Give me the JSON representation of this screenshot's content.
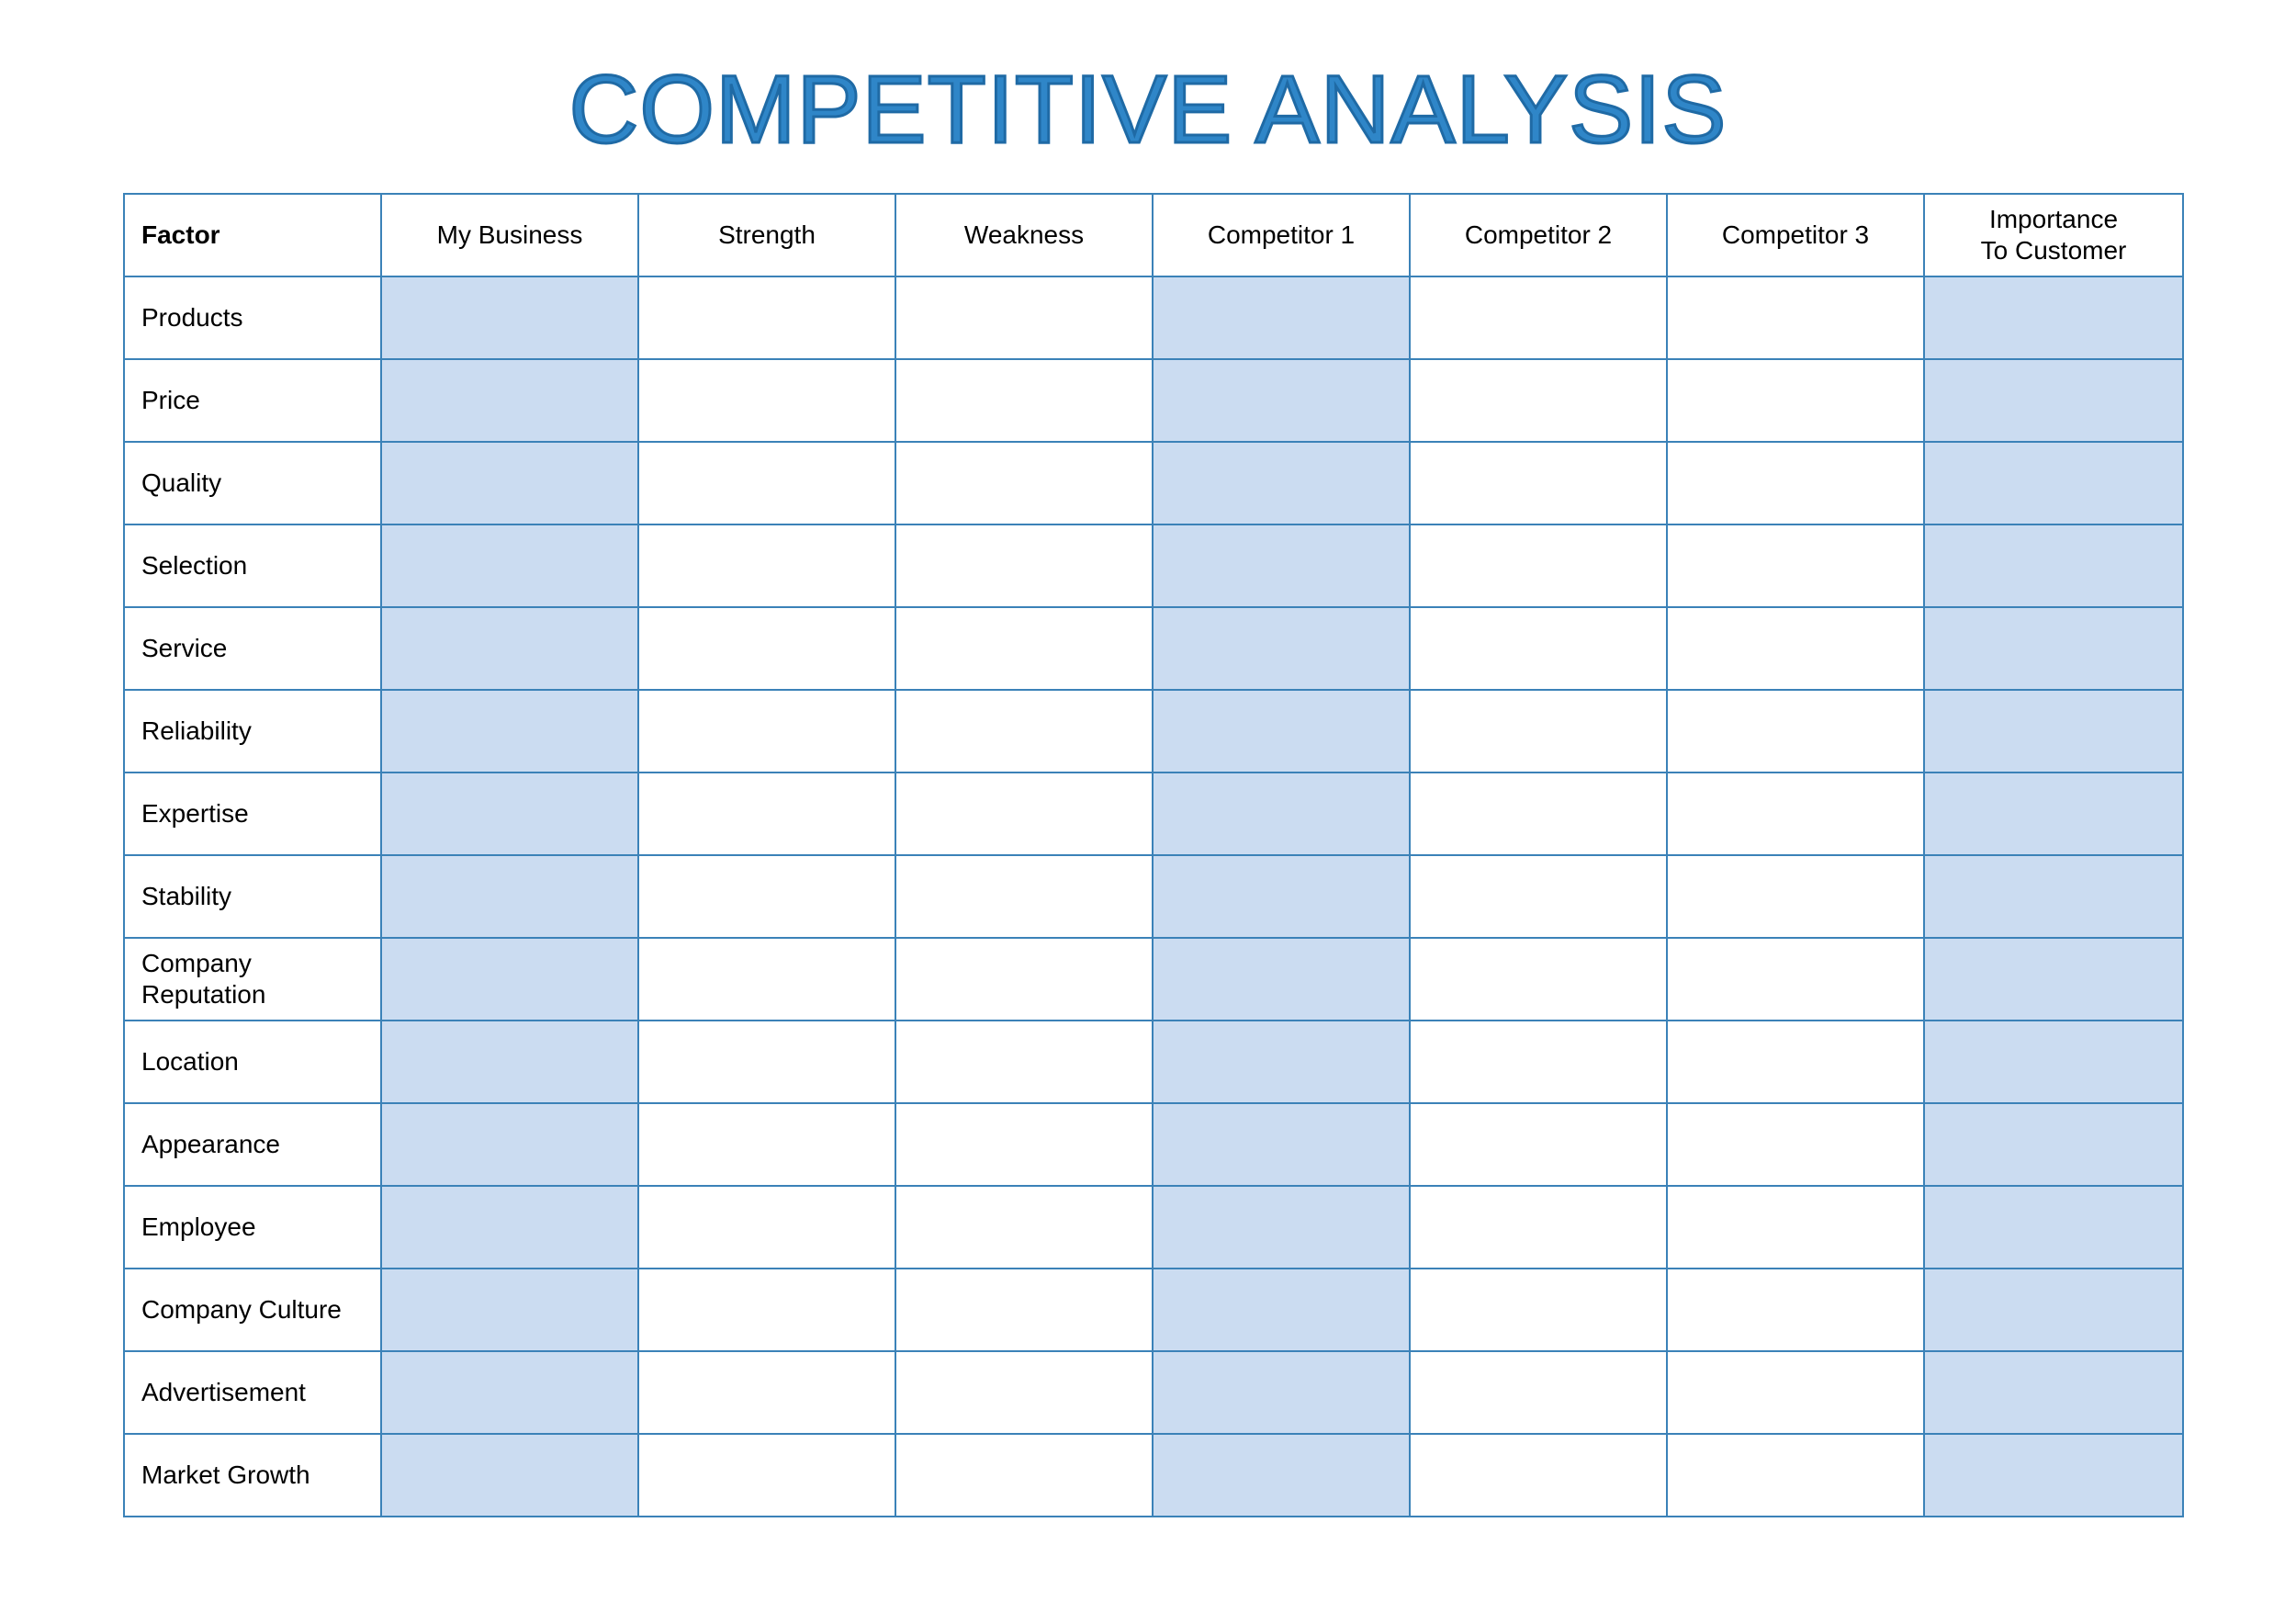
{
  "title": "COMPETITIVE ANALYSIS",
  "colors": {
    "title": "#2f86c8",
    "border": "#3b82b8",
    "shaded_cell": "#cbdcf1"
  },
  "table": {
    "headers": [
      "Factor",
      "My Business",
      "Strength",
      "Weakness",
      "Competitor 1",
      "Competitor 2",
      "Competitor 3",
      "Importance To Customer"
    ],
    "shaded_columns": [
      "My Business",
      "Competitor 1",
      "Importance To Customer"
    ],
    "rows": [
      "Products",
      "Price",
      "Quality",
      "Selection",
      "Service",
      "Reliability",
      "Expertise",
      "Stability",
      "Company Reputation",
      "Location",
      "Appearance",
      "Employee",
      "Company Culture",
      "Advertisement",
      "Market Growth"
    ]
  }
}
